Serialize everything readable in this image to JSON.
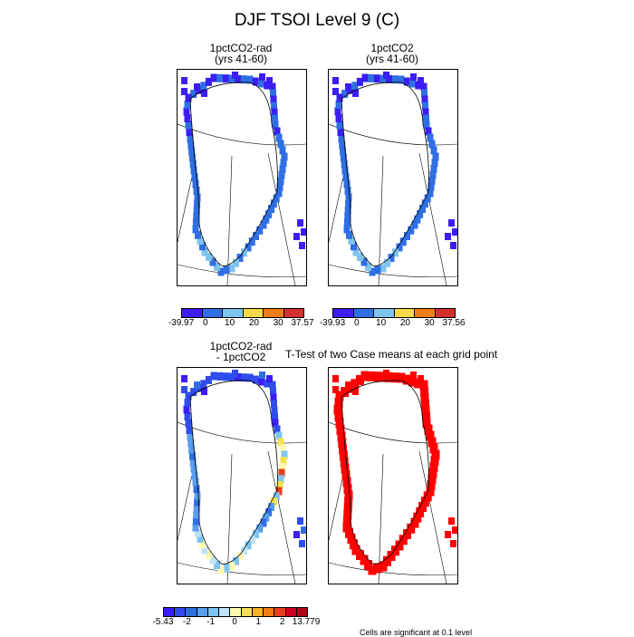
{
  "title": "DJF TSOI Level 9 (C)",
  "panels": {
    "p1": {
      "line1": "1pctCO2-rad",
      "line2": "(yrs 41-60)"
    },
    "p2": {
      "line1": "1pctCO2",
      "line2": "(yrs 41-60)"
    },
    "p3": {
      "line1": "1pctCO2-rad",
      "line2": "- 1pctCO2"
    },
    "p4": {
      "title": "T-Test of two Case means at each grid point"
    }
  },
  "colorbars": {
    "cb1": {
      "labels": [
        "-39.97",
        "0",
        "10",
        "20",
        "30",
        "37.57"
      ],
      "colors": [
        "#3a1ef2",
        "#2f6fe3",
        "#7ec4ef",
        "#f5d949",
        "#f07d16",
        "#d3302e"
      ]
    },
    "cb2": {
      "labels": [
        "-39.93",
        "0",
        "10",
        "20",
        "30",
        "37.56"
      ],
      "colors": [
        "#3a1ef2",
        "#2f6fe3",
        "#7ec4ef",
        "#f5d949",
        "#f07d16",
        "#d3302e"
      ]
    },
    "cb3": {
      "labels": [
        "-5.43",
        "-2",
        "-1",
        "0",
        "1",
        "2",
        "13.779"
      ],
      "colors": [
        "#3a1ef2",
        "#2f4cec",
        "#2f6fe3",
        "#5a9ded",
        "#7ec4ef",
        "#bfe3f6",
        "#fff8b0",
        "#f5e14a",
        "#f5b224",
        "#f07d16",
        "#e4401e",
        "#d3001e",
        "#b40019"
      ]
    }
  },
  "note": "Cells are significant at 0.1 level",
  "colors": {
    "cold": "#3a1ef2",
    "base": "#2f6fe3",
    "light": "#7ec4ef",
    "significant": "#ff0000"
  }
}
